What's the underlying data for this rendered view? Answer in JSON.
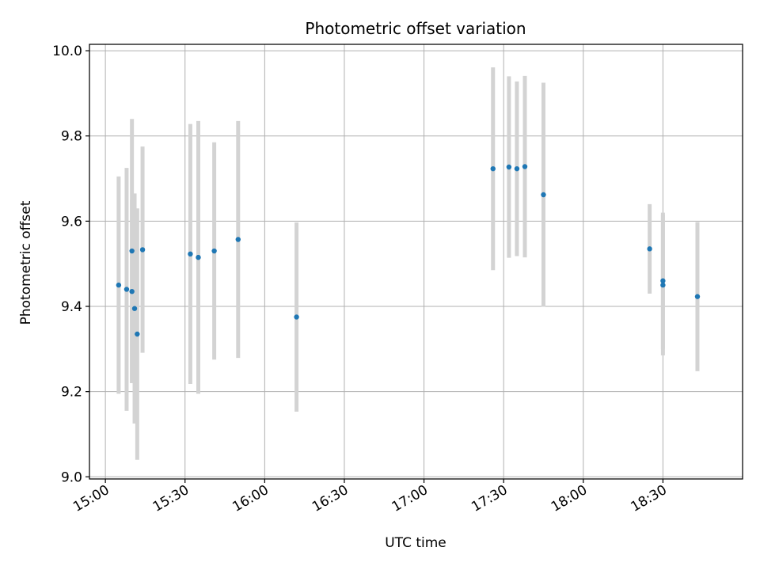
{
  "chart_data": {
    "type": "scatter",
    "title": "Photometric offset variation",
    "xlabel": "UTC time",
    "ylabel": "Photometric offset",
    "x_axis_type": "time",
    "xlim": [
      "14:54",
      "19:00"
    ],
    "ylim": [
      8.995,
      10.015
    ],
    "x_ticks": [
      "15:00",
      "15:30",
      "16:00",
      "16:30",
      "17:00",
      "17:30",
      "18:00",
      "18:30"
    ],
    "y_ticks": [
      "9.0",
      "9.2",
      "9.4",
      "9.6",
      "9.8",
      "10.0"
    ],
    "grid": true,
    "point_color": "#1f77b4",
    "errorbar_color": "#d3d3d3",
    "series": [
      {
        "points": [
          {
            "x": "15:05",
            "y": 9.45,
            "err": 0.255
          },
          {
            "x": "15:08",
            "y": 9.44,
            "err": 0.285
          },
          {
            "x": "15:10",
            "y": 9.53,
            "err": 0.31
          },
          {
            "x": "15:10",
            "y": 9.435,
            "err": 0.215
          },
          {
            "x": "15:11",
            "y": 9.395,
            "err": 0.27
          },
          {
            "x": "15:12",
            "y": 9.335,
            "err": 0.295
          },
          {
            "x": "15:14",
            "y": 9.533,
            "err": 0.242
          },
          {
            "x": "15:32",
            "y": 9.523,
            "err": 0.305
          },
          {
            "x": "15:35",
            "y": 9.515,
            "err": 0.32
          },
          {
            "x": "15:41",
            "y": 9.53,
            "err": 0.255
          },
          {
            "x": "15:50",
            "y": 9.557,
            "err": 0.278
          },
          {
            "x": "16:12",
            "y": 9.375,
            "err": 0.222
          },
          {
            "x": "17:26",
            "y": 9.723,
            "err": 0.238
          },
          {
            "x": "17:32",
            "y": 9.727,
            "err": 0.213
          },
          {
            "x": "17:35",
            "y": 9.723,
            "err": 0.205
          },
          {
            "x": "17:38",
            "y": 9.728,
            "err": 0.213
          },
          {
            "x": "17:45",
            "y": 9.662,
            "err": 0.263
          },
          {
            "x": "18:25",
            "y": 9.535,
            "err": 0.105
          },
          {
            "x": "18:30",
            "y": 9.46,
            "err": 0.16
          },
          {
            "x": "18:30",
            "y": 9.45,
            "err": 0.165
          },
          {
            "x": "18:43",
            "y": 9.423,
            "err": 0.175
          }
        ]
      }
    ]
  }
}
